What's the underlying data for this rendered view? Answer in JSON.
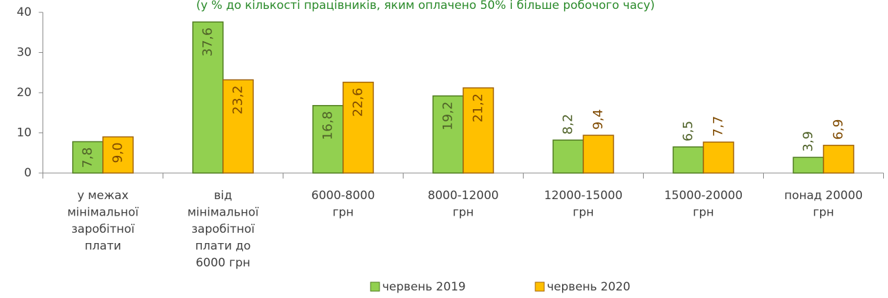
{
  "chart_data": {
    "type": "bar",
    "title": "(у % до кількості працівників, яким оплачено 50% і більше робочого часу)",
    "categories": [
      "у межах мінімальної заробітної плати",
      "від мінімальної заробітної плати до 6000 грн",
      "6000-8000 грн",
      "8000-12000 грн",
      "12000-15000 грн",
      "15000-20000 грн",
      "понад 20000 грн"
    ],
    "series": [
      {
        "name": "червень 2019",
        "color": "#92d050",
        "values": [
          7.8,
          37.6,
          16.8,
          19.2,
          8.2,
          6.5,
          3.9
        ],
        "value_labels": [
          "7,8",
          "37,6",
          "16,8",
          "19,2",
          "8,2",
          "6,5",
          "3,9"
        ]
      },
      {
        "name": "червень 2020",
        "color": "#ffc000",
        "values": [
          9.0,
          23.2,
          22.6,
          21.2,
          9.4,
          7.7,
          6.9
        ],
        "value_labels": [
          "9,0",
          "23,2",
          "22,6",
          "21,2",
          "9,4",
          "7,7",
          "6,9"
        ]
      }
    ],
    "ylim": [
      0,
      40
    ],
    "yticks": [
      0,
      10,
      20,
      30,
      40
    ],
    "grid": false
  }
}
